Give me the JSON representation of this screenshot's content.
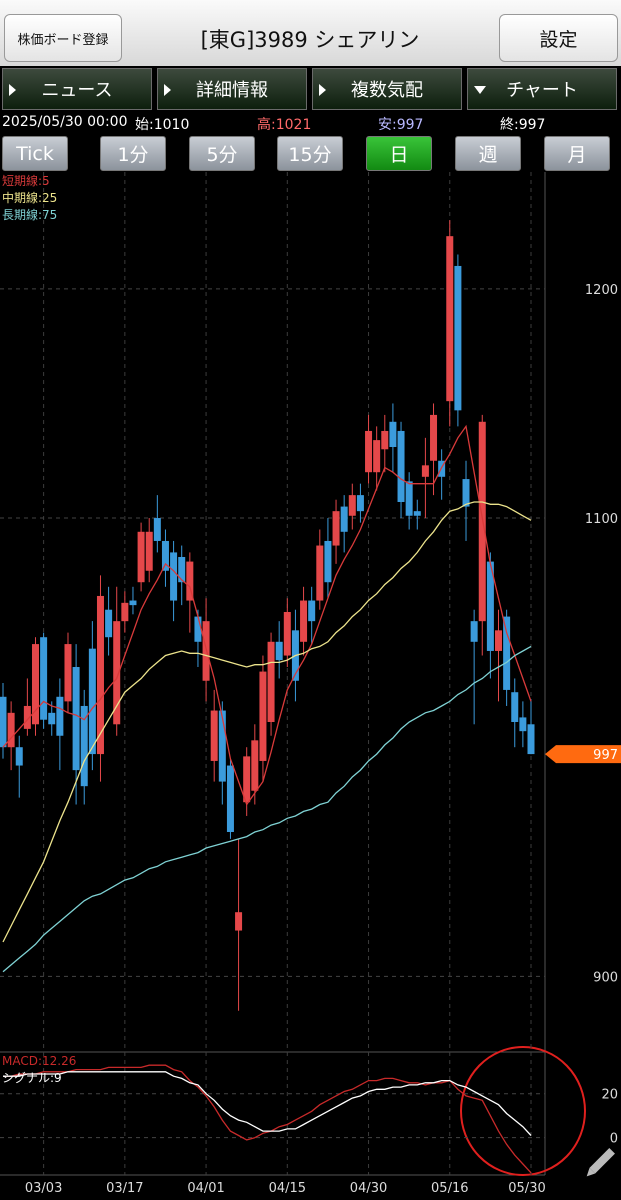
{
  "header": {
    "left_button": "株価ボード登録",
    "title": "[東G]3989 シェアリン",
    "right_button": "設定"
  },
  "tabs": [
    "ニュース",
    "詳細情報",
    "複数気配",
    "チャート"
  ],
  "info": {
    "datetime": "2025/05/30 00:00",
    "open": "始:1010",
    "high": "高:1021",
    "low": "安:997",
    "close": "終:997"
  },
  "timeframes": [
    "Tick",
    "1分",
    "5分",
    "15分",
    "日",
    "週",
    "月"
  ],
  "chart_data": [
    {
      "type": "candlestick",
      "current_price": 997,
      "categories": [
        null,
        null,
        null,
        null,
        null,
        "03/03",
        null,
        null,
        null,
        null,
        null,
        null,
        null,
        null,
        null,
        "03/17",
        null,
        null,
        null,
        null,
        null,
        null,
        null,
        null,
        null,
        "04/01",
        null,
        null,
        null,
        null,
        null,
        null,
        null,
        null,
        null,
        "04/15",
        null,
        null,
        null,
        null,
        null,
        null,
        null,
        null,
        null,
        "04/30",
        null,
        null,
        null,
        null,
        null,
        null,
        null,
        null,
        null,
        "05/16",
        null,
        null,
        null,
        null,
        null,
        null,
        null,
        null,
        null,
        "05/30"
      ],
      "open": [
        1022,
        1000,
        1000,
        1008,
        1010,
        1048,
        1015,
        1022,
        1020,
        1035,
        1018,
        1043,
        997,
        1060,
        1010,
        1055,
        1064,
        1072,
        1077,
        1100,
        1090,
        1085,
        1083,
        1064,
        1057,
        1029,
        994,
        1016,
        992,
        920,
        976,
        981,
        994,
        1011,
        1046,
        1040,
        1051,
        1046,
        1064,
        1064,
        1090,
        1088,
        1105,
        1101,
        1110,
        1120,
        1120,
        1130,
        1142,
        1138,
        1116,
        1103,
        1118,
        1125,
        1125,
        1151,
        1210,
        1117,
        1055,
        1055,
        1081,
        1042,
        1057,
        1024,
        1013,
        1010
      ],
      "high": [
        1028,
        1020,
        1005,
        1030,
        1048,
        1050,
        1020,
        1030,
        1050,
        1045,
        1025,
        1055,
        1075,
        1070,
        1070,
        1068,
        1070,
        1098,
        1100,
        1110,
        1095,
        1090,
        1088,
        1085,
        1060,
        1065,
        1025,
        1020,
        995,
        960,
        1000,
        1010,
        1040,
        1050,
        1055,
        1065,
        1060,
        1070,
        1070,
        1095,
        1100,
        1108,
        1110,
        1115,
        1115,
        1145,
        1140,
        1145,
        1150,
        1142,
        1120,
        1108,
        1135,
        1150,
        1130,
        1230,
        1215,
        1125,
        1060,
        1145,
        1085,
        1060,
        1060,
        1030,
        1020,
        1021
      ],
      "low": [
        995,
        990,
        978,
        1005,
        1005,
        1008,
        1005,
        990,
        1015,
        975,
        975,
        990,
        985,
        1040,
        1005,
        1050,
        1058,
        1068,
        1072,
        1085,
        1070,
        1055,
        1062,
        1050,
        1035,
        1020,
        985,
        975,
        960,
        885,
        970,
        975,
        985,
        1005,
        1030,
        1035,
        1020,
        1040,
        1045,
        1060,
        1065,
        1080,
        1085,
        1095,
        1098,
        1115,
        1112,
        1120,
        1120,
        1100,
        1095,
        1095,
        1100,
        1110,
        1108,
        1140,
        1140,
        1090,
        1010,
        1040,
        1030,
        1020,
        1018,
        1000,
        1000,
        997
      ],
      "close": [
        1000,
        1015,
        992,
        1018,
        1045,
        1012,
        1010,
        1005,
        1045,
        990,
        983,
        997,
        1066,
        1048,
        1055,
        1063,
        1062,
        1094,
        1094,
        1090,
        1077,
        1064,
        1072,
        1081,
        1046,
        1055,
        1016,
        985,
        963,
        928,
        996,
        1003,
        1033,
        1046,
        1038,
        1059,
        1029,
        1064,
        1055,
        1088,
        1072,
        1103,
        1094,
        1110,
        1103,
        1138,
        1134,
        1138,
        1131,
        1107,
        1101,
        1101,
        1123,
        1145,
        1118,
        1223,
        1147,
        1105,
        1046,
        1142,
        1042,
        1051,
        1025,
        1011,
        1007,
        997
      ],
      "up_color": "#e5484a",
      "down_color": "#3b9bdc",
      "series": [
        {
          "name": "短期線:5",
          "color": "#d83a3a",
          "values": [
            1000,
            1004,
            1008,
            1012,
            1016,
            1020,
            1018,
            1017,
            1015,
            1014,
            1012,
            1017,
            1021,
            1026,
            1030,
            1040,
            1050,
            1060,
            1067,
            1073,
            1080,
            1077,
            1073,
            1070,
            1057,
            1043,
            1030,
            1013,
            995,
            985,
            975,
            980,
            985,
            998,
            1012,
            1025,
            1032,
            1038,
            1045,
            1055,
            1065,
            1075,
            1082,
            1088,
            1095,
            1104,
            1113,
            1122,
            1120,
            1117,
            1115,
            1115,
            1115,
            1115,
            1122,
            1128,
            1135,
            1140,
            1120,
            1100,
            1080,
            1065,
            1050,
            1040,
            1030,
            1020
          ]
        },
        {
          "name": "中期線:25",
          "color": "#ece38c",
          "values": [
            915,
            922,
            929,
            936,
            943,
            950,
            959,
            968,
            976,
            985,
            994,
            1000,
            1006,
            1012,
            1018,
            1024,
            1027,
            1030,
            1034,
            1037,
            1040,
            1041,
            1042,
            1041,
            1041,
            1040,
            1039,
            1038,
            1037,
            1036,
            1035,
            1036,
            1036,
            1037,
            1037,
            1038,
            1040,
            1041,
            1043,
            1044,
            1046,
            1050,
            1053,
            1057,
            1060,
            1064,
            1067,
            1071,
            1074,
            1078,
            1081,
            1085,
            1090,
            1094,
            1099,
            1103,
            1104,
            1106,
            1107,
            1107,
            1106,
            1106,
            1105,
            1103,
            1101,
            1099
          ]
        },
        {
          "name": "長期線:75",
          "color": "#7fd2d4",
          "values": [
            902,
            905,
            908,
            911,
            914,
            918,
            921,
            924,
            927,
            930,
            933,
            935,
            936,
            938,
            940,
            942,
            943,
            945,
            947,
            948,
            950,
            951,
            952,
            953,
            954,
            956,
            957,
            958,
            959,
            960,
            961,
            963,
            964,
            966,
            967,
            969,
            970,
            972,
            973,
            975,
            976,
            980,
            983,
            987,
            990,
            994,
            997,
            1001,
            1004,
            1008,
            1011,
            1013,
            1015,
            1016,
            1018,
            1020,
            1023,
            1025,
            1028,
            1030,
            1033,
            1035,
            1037,
            1040,
            1042,
            1044
          ]
        }
      ],
      "ylim": [
        867,
        1251
      ],
      "yticks": [
        900,
        1100,
        1200
      ],
      "grid": true
    },
    {
      "type": "line",
      "ylim": [
        -17,
        39
      ],
      "yticks": [
        0,
        20
      ],
      "grid": true,
      "series": [
        {
          "name": "MACD:12.26",
          "color": "#c82a2a",
          "values": [
            28,
            28,
            29,
            29,
            29,
            30,
            30,
            30,
            30,
            31,
            31,
            31,
            31,
            32,
            32,
            32,
            32,
            32,
            33,
            33,
            33,
            31,
            30,
            26,
            23,
            19,
            14,
            8,
            3,
            1,
            -1,
            0,
            2,
            3,
            5,
            6,
            8,
            10,
            12,
            15,
            17,
            19,
            21,
            22,
            24,
            26,
            26,
            27,
            27,
            26,
            25,
            25,
            24,
            25,
            25,
            26,
            22,
            19,
            18,
            17,
            10,
            3,
            -3,
            -8,
            -12,
            -16
          ]
        },
        {
          "name": "シグナル:9",
          "color": "#ffffff",
          "values": [
            28,
            28,
            28,
            29,
            29,
            29,
            29,
            29,
            30,
            30,
            30,
            30,
            30,
            30,
            30,
            30,
            30,
            30,
            30,
            30,
            30,
            28,
            27,
            25,
            24,
            20,
            17,
            13,
            10,
            8,
            7,
            5,
            3,
            3,
            3,
            4,
            4,
            6,
            8,
            10,
            12,
            14,
            16,
            18,
            19,
            21,
            22,
            22,
            23,
            23,
            24,
            24,
            25,
            25,
            26,
            26,
            24,
            23,
            21,
            19,
            17,
            15,
            11,
            8,
            5,
            1
          ]
        }
      ]
    }
  ]
}
